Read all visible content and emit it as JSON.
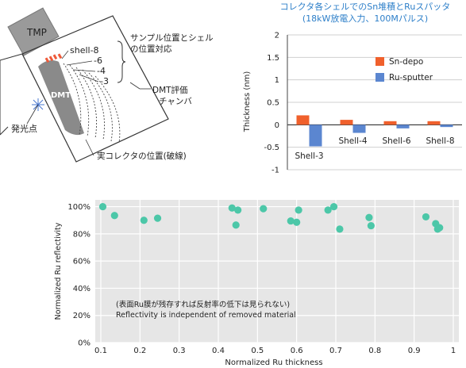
{
  "diagram": {
    "tmp_label": "TMP",
    "dmt_label": "DMT",
    "shell_labels": [
      "shell-8",
      "-6",
      "-4",
      "-3"
    ],
    "annotation_shell_position": [
      "サンプル位置とシェル",
      "の位置対応"
    ],
    "annotation_chamber": [
      "DMT評価",
      "チャンバ"
    ],
    "annotation_emission_point": "発光点",
    "annotation_collector": "実コレクタの位置(破線)",
    "colors": {
      "sample_marker": "#ee5a3a",
      "dmt_body": "#8a8a8a",
      "emission": "#4a78d0"
    }
  },
  "chart_data": [
    {
      "type": "bar",
      "title": "コレクタ各シェルでのSn堆積とRuスパッタ",
      "subtitle": "(18kW放電入力、100Mパルス)",
      "categories": [
        "Shell-3",
        "Shell-4",
        "Shell-6",
        "Shell-8"
      ],
      "series": [
        {
          "name": "Sn-depo",
          "color": "#f0602c",
          "values": [
            0.21,
            0.11,
            0.08,
            0.08
          ]
        },
        {
          "name": "Ru-sputter",
          "color": "#5b86d0",
          "values": [
            -0.48,
            -0.18,
            -0.08,
            -0.05
          ]
        }
      ],
      "xlabel": "",
      "ylabel": "Thickness (nm)",
      "ylim": [
        -1,
        2
      ],
      "yticks": [
        "2",
        "1.5",
        "1",
        "0.5",
        "0",
        "-0.5",
        "-1"
      ],
      "grid": true,
      "legend": "upper-center",
      "title_color": "#2d7fc9"
    },
    {
      "type": "scatter",
      "title": "",
      "xlabel": "Normalized Ru thickness",
      "ylabel": "Normalized Ru reflectivity",
      "xlim": [
        0.1,
        1.0
      ],
      "ylim": [
        0,
        105
      ],
      "xticks": [
        "0.1",
        "0.2",
        "0.3",
        "0.4",
        "0.5",
        "0.6",
        "0.7",
        "0.8",
        "0.9",
        "1"
      ],
      "yticks": [
        "100%",
        "80%",
        "60%",
        "40%",
        "20%",
        "0%"
      ],
      "point_color": "#4cc7a8",
      "points": [
        [
          0.105,
          100
        ],
        [
          0.135,
          93.5
        ],
        [
          0.21,
          90
        ],
        [
          0.245,
          91.5
        ],
        [
          0.435,
          99
        ],
        [
          0.445,
          86.5
        ],
        [
          0.45,
          97.5
        ],
        [
          0.515,
          98.5
        ],
        [
          0.585,
          89.5
        ],
        [
          0.6,
          88.5
        ],
        [
          0.605,
          97.5
        ],
        [
          0.68,
          97.5
        ],
        [
          0.695,
          100
        ],
        [
          0.71,
          83.5
        ],
        [
          0.785,
          92
        ],
        [
          0.79,
          86
        ],
        [
          0.93,
          92.5
        ],
        [
          0.955,
          87.5
        ],
        [
          0.96,
          83.5
        ],
        [
          0.965,
          84.5
        ]
      ],
      "annotation": [
        "(表面Ru膜が残存すれば反射率の低下は見られない)",
        "Reflectivity is independent of removed material"
      ],
      "grid": true
    }
  ]
}
